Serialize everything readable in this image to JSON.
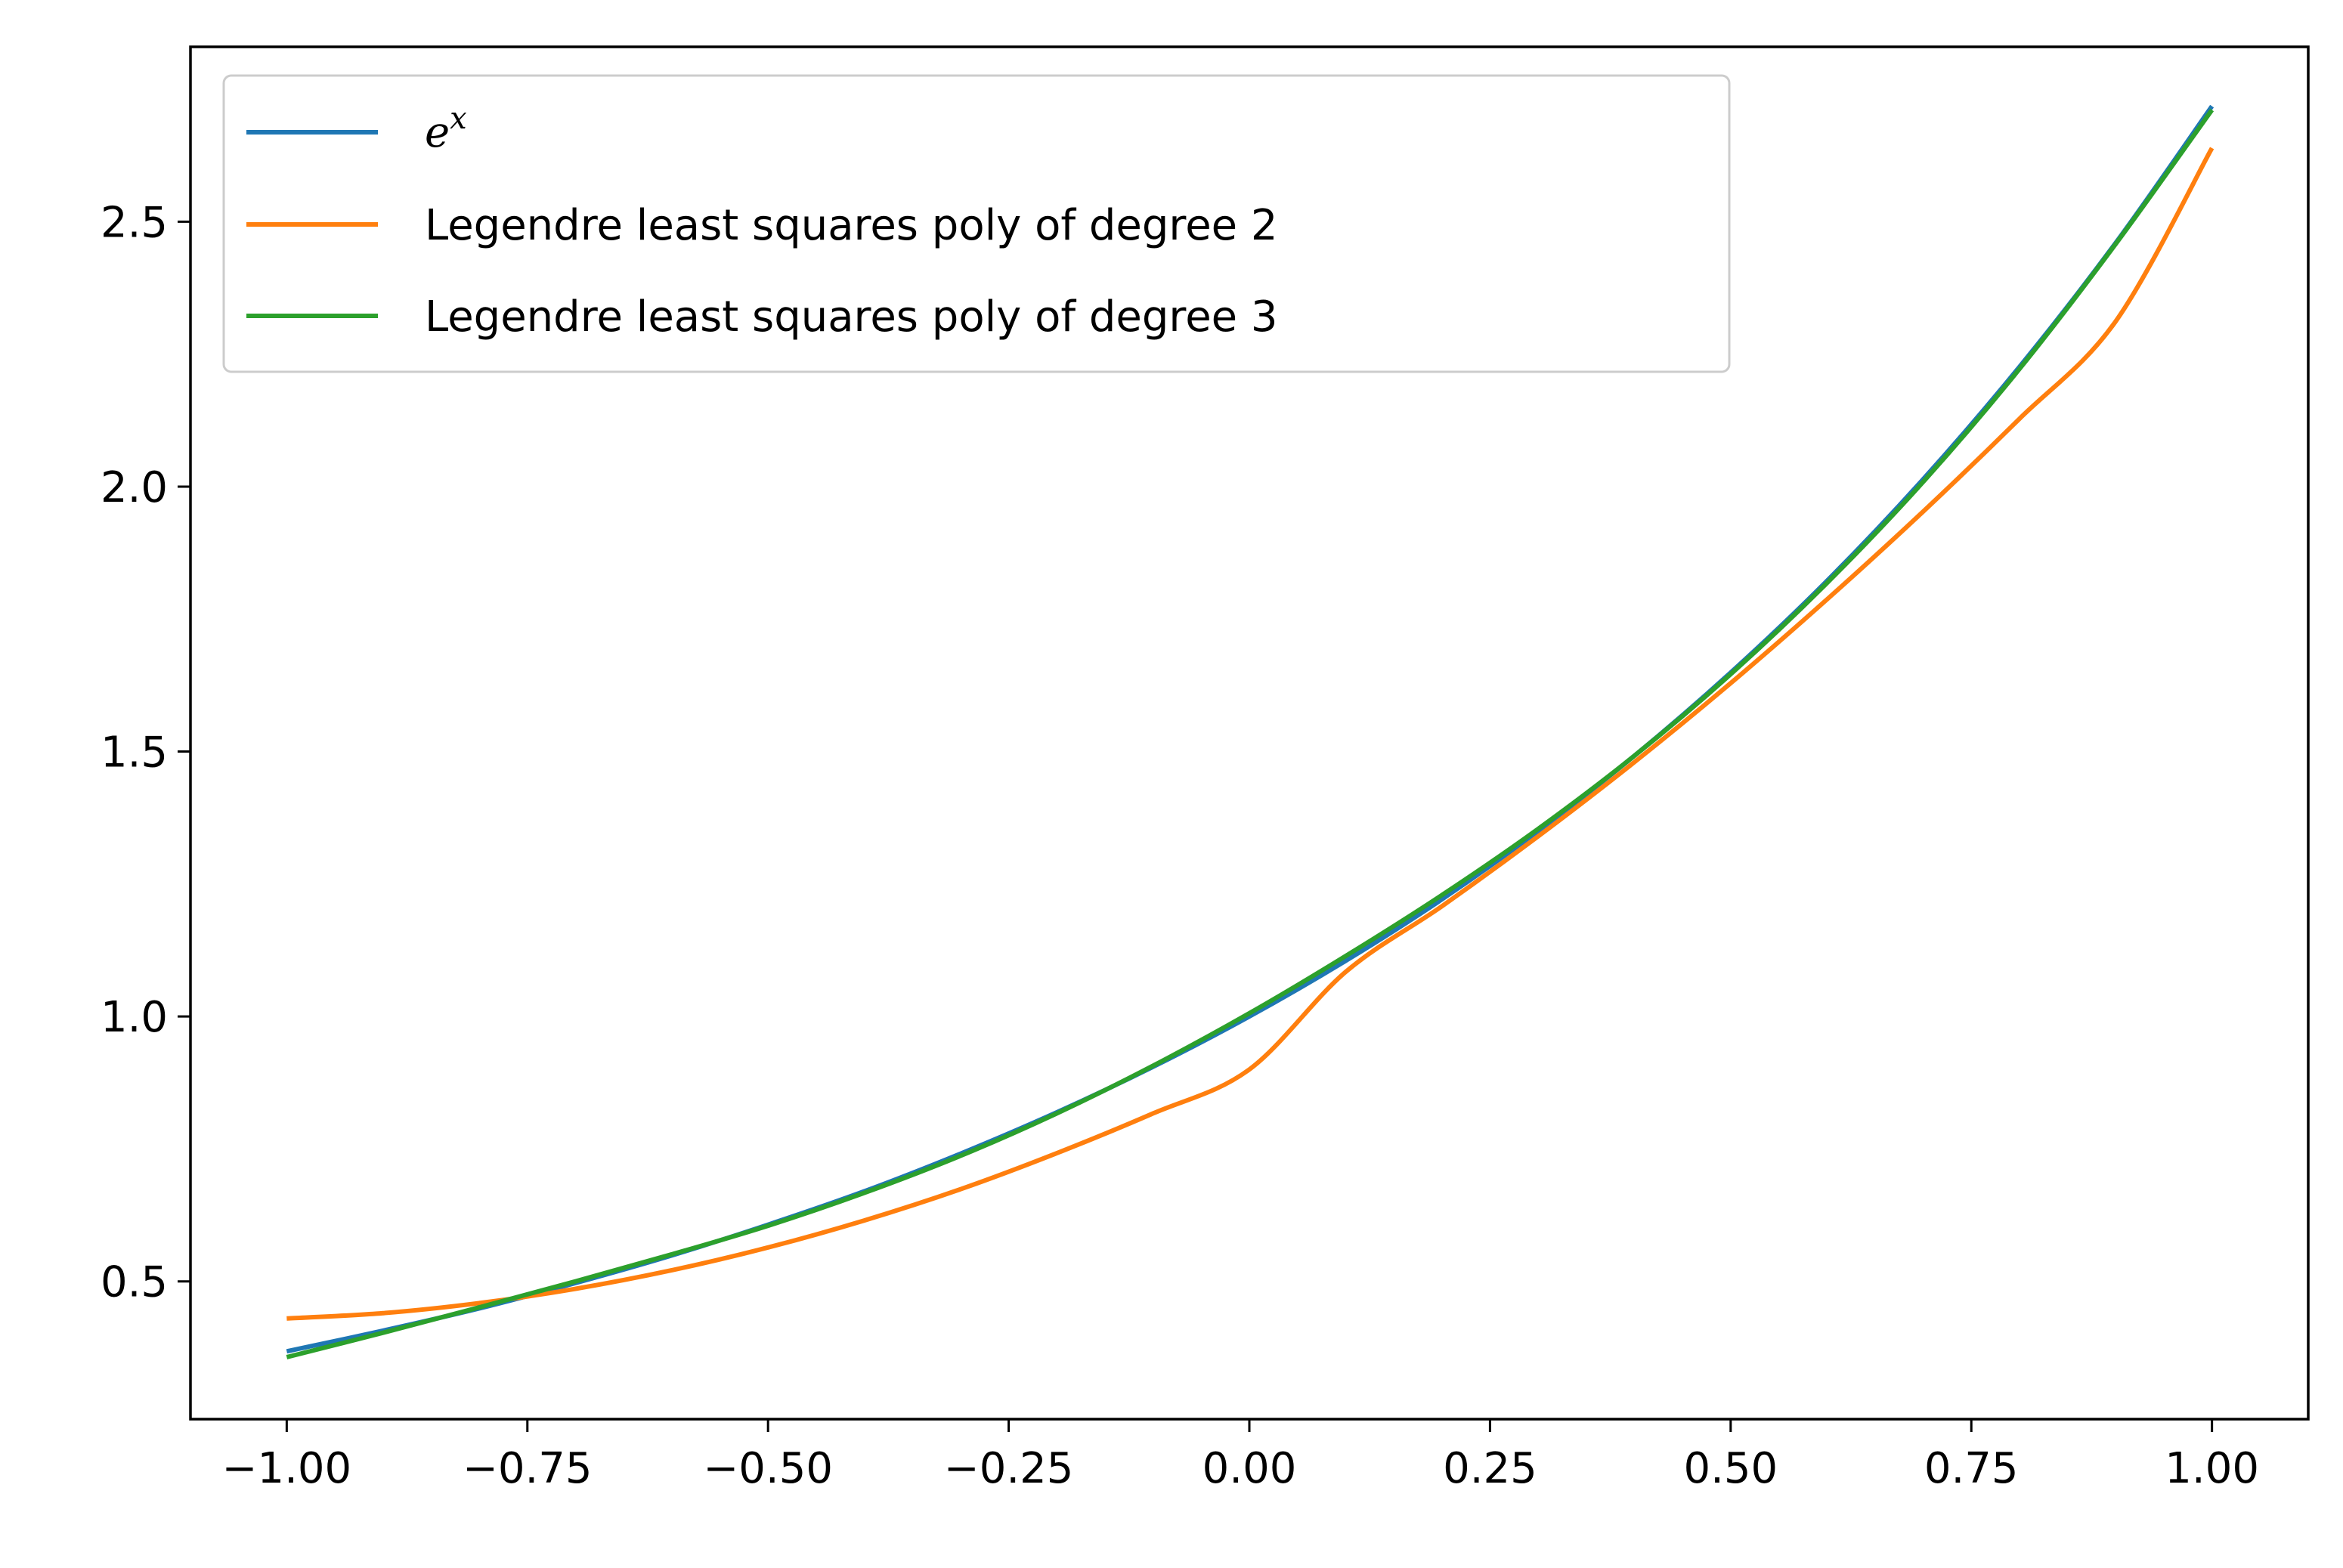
{
  "chart_data": {
    "type": "line",
    "title": "",
    "xlabel": "",
    "ylabel": "",
    "xlim": [
      -1.1,
      1.1
    ],
    "ylim": [
      0.24,
      2.83
    ],
    "grid": false,
    "legend_position": "top-left",
    "x_ticks": [
      -1.0,
      -0.75,
      -0.5,
      -0.25,
      0.0,
      0.25,
      0.5,
      0.75,
      1.0
    ],
    "x_tick_labels": [
      "−1.00",
      "−0.75",
      "−0.50",
      "−0.25",
      "0.00",
      "0.25",
      "0.50",
      "0.75",
      "1.00"
    ],
    "y_ticks": [
      0.5,
      1.0,
      1.5,
      2.0,
      2.5
    ],
    "y_tick_labels": [
      "0.5",
      "1.0",
      "1.5",
      "2.0",
      "2.5"
    ],
    "x": [
      -1.0,
      -0.9,
      -0.8,
      -0.7,
      -0.6,
      -0.5,
      -0.4,
      -0.3,
      -0.2,
      -0.1,
      0.0,
      0.1,
      0.2,
      0.3,
      0.4,
      0.5,
      0.6,
      0.7,
      0.8,
      0.9,
      1.0
    ],
    "series": [
      {
        "name": "e^x",
        "color": "#1f77b4",
        "values": [
          0.368,
          0.407,
          0.449,
          0.497,
          0.549,
          0.607,
          0.67,
          0.741,
          0.819,
          0.905,
          1.0,
          1.105,
          1.221,
          1.35,
          1.492,
          1.649,
          1.822,
          2.014,
          2.226,
          2.46,
          2.718
        ]
      },
      {
        "name": "Legendre least squares poly of degree 2",
        "color": "#ff7f0e",
        "values": [
          0.43,
          0.44,
          0.459,
          0.486,
          0.521,
          0.564,
          0.615,
          0.674,
          0.742,
          0.817,
          0.9,
          1.084,
          1.208,
          1.34,
          1.48,
          1.629,
          1.787,
          1.953,
          2.128,
          2.312,
          2.639
        ]
      },
      {
        "name": "Legendre least squares poly of degree 3",
        "color": "#2ca02c",
        "values": [
          0.357,
          0.403,
          0.451,
          0.5,
          0.551,
          0.605,
          0.667,
          0.737,
          0.817,
          0.907,
          1.006,
          1.114,
          1.229,
          1.354,
          1.492,
          1.646,
          1.818,
          2.009,
          2.222,
          2.458,
          2.711
        ]
      }
    ]
  },
  "legend": {
    "items": [
      {
        "base": "e",
        "sup": "x"
      },
      {
        "text": "Legendre least squares poly of degree 2"
      },
      {
        "text": "Legendre least squares poly of degree 3"
      }
    ]
  }
}
